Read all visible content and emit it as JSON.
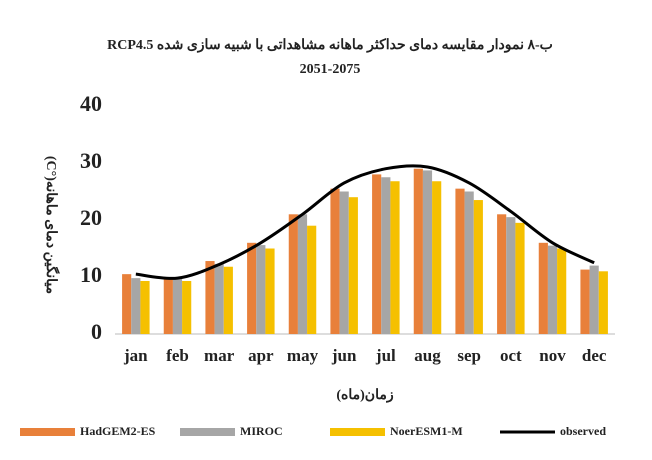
{
  "chart_data": {
    "type": "bar_line",
    "title": "ب-۸   نمودار مقایسه دمای حداکثر ماهانه مشاهداتی با شبیه سازی شده RCP4.5",
    "subtitle": "2051-2075",
    "y_label": "میانگین دمای ماهانه(°C)",
    "x_label": "زمان(ماه)",
    "categories": [
      "jan",
      "feb",
      "mar",
      "apr",
      "may",
      "jun",
      "jul",
      "aug",
      "sep",
      "oct",
      "nov",
      "dec"
    ],
    "series": [
      {
        "name": "HadGEM2-ES",
        "color": "#e8803a",
        "kind": "bar",
        "values": [
          10.5,
          9.8,
          12.8,
          16,
          21,
          25.5,
          28,
          29,
          25.5,
          21,
          16,
          11.3
        ]
      },
      {
        "name": "MIROC",
        "color": "#a6a6a6",
        "kind": "bar",
        "values": [
          9.8,
          9.7,
          12.3,
          15.6,
          21,
          25,
          27.5,
          28.7,
          25,
          20.5,
          15.5,
          12
        ]
      },
      {
        "name": "NoerESM1-M",
        "color": "#f5c000",
        "kind": "bar",
        "values": [
          9.3,
          9.3,
          11.8,
          15,
          19,
          24,
          26.8,
          26.8,
          23.5,
          19.5,
          15,
          11
        ]
      },
      {
        "name": "observed",
        "color": "#000000",
        "kind": "line",
        "values": [
          10.5,
          9.8,
          12.2,
          16,
          21,
          26.5,
          29,
          29.3,
          26.5,
          21.5,
          16,
          12.5
        ]
      }
    ],
    "ylim": [
      0,
      40
    ],
    "yticks": [
      0,
      10,
      20,
      30,
      40
    ],
    "grid": false
  }
}
